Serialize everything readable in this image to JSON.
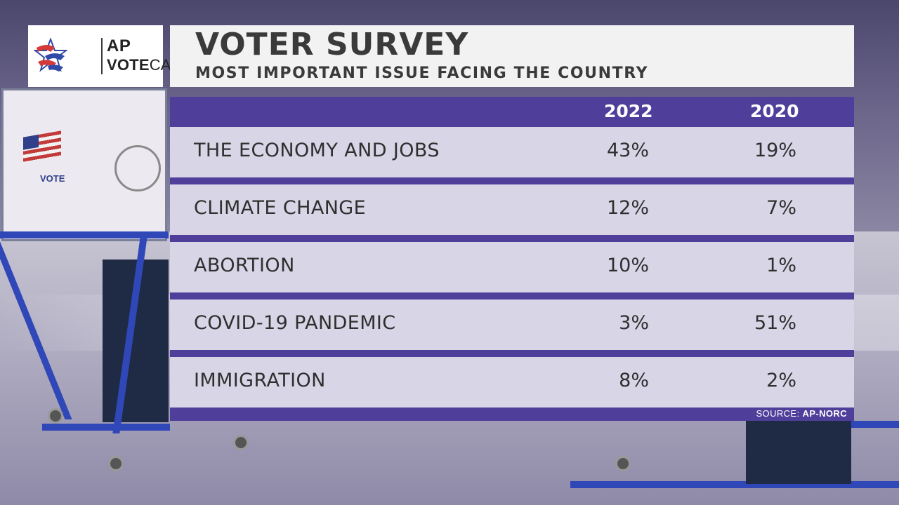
{
  "logo": {
    "line1": "AP",
    "line2_bold": "VOTE",
    "line2_rest": "CAST",
    "icon": "ap-votecast-star-icon"
  },
  "header": {
    "title": "VOTER SURVEY",
    "subtitle": "MOST IMPORTANT ISSUE FACING THE COUNTRY"
  },
  "colors": {
    "table_band": "#4f3f9a",
    "row_bg": "#eeeef2",
    "logo_red": "#d33a3a",
    "logo_blue": "#2f4aa8"
  },
  "chart_data": {
    "type": "table",
    "title": "VOTER SURVEY",
    "subtitle": "MOST IMPORTANT ISSUE FACING THE COUNTRY",
    "columns": [
      "2022",
      "2020"
    ],
    "rows": [
      {
        "issue": "THE ECONOMY AND JOBS",
        "values": [
          "43%",
          "19%"
        ]
      },
      {
        "issue": "CLIMATE CHANGE",
        "values": [
          "12%",
          "7%"
        ]
      },
      {
        "issue": "ABORTION",
        "values": [
          "10%",
          "1%"
        ]
      },
      {
        "issue": "COVID-19 PANDEMIC",
        "values": [
          "3%",
          "51%"
        ]
      },
      {
        "issue": "IMMIGRATION",
        "values": [
          "8%",
          "2%"
        ]
      }
    ]
  },
  "source": {
    "label": "SOURCE:",
    "value": "AP-NORC"
  }
}
